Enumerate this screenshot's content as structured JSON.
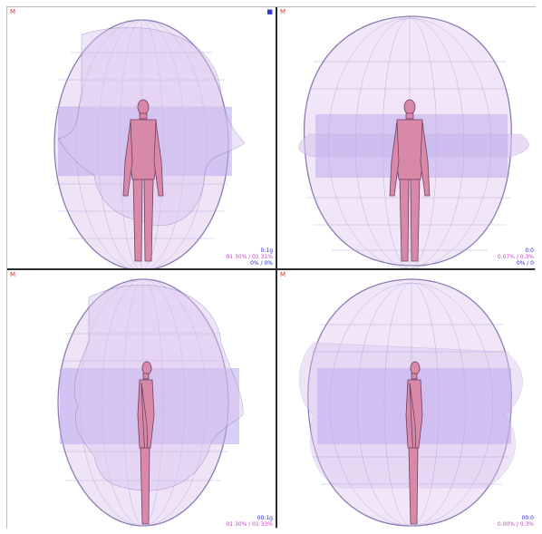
{
  "viewports": [
    {
      "id": "front-horizontal",
      "marker_left": "M",
      "marker_right": "■",
      "readout_line1": "0:1g",
      "readout_line2": "01 30% / 01 31%",
      "readout_line3": "0% / 0%"
    },
    {
      "id": "front-extended",
      "marker_left": "M",
      "marker_right": "",
      "readout_line1": "0:0",
      "readout_line2": "0.07% / 0.3%",
      "readout_line3": "0% / 0"
    },
    {
      "id": "side-horizontal",
      "marker_left": "M",
      "marker_right": "",
      "readout_line1": "00:1g",
      "readout_line2": "01 30% / 01 33%",
      "readout_line3": ""
    },
    {
      "id": "side-extended",
      "marker_left": "M",
      "marker_right": "",
      "readout_line1": "00:0",
      "readout_line2": "0.00% / 0.3%",
      "readout_line3": ""
    }
  ],
  "colors": {
    "shell_fill": "#e9d9f3",
    "shell_edge": "#8a7bb4",
    "wireframe": "#9a8fc9",
    "band": "#b9a7ee",
    "body_fill": "#d889a8",
    "body_edge": "#6e3f63",
    "marker_red": "#dd3333",
    "marker_blue": "#3333dd"
  }
}
